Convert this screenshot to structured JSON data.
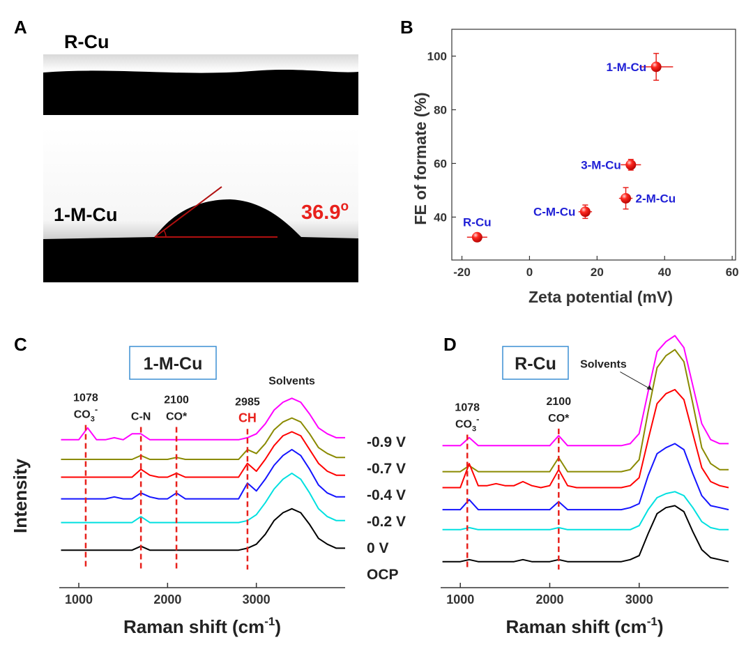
{
  "panel_letters": [
    "A",
    "B",
    "C",
    "D"
  ],
  "panel_a": {
    "top_label": "R-Cu",
    "bottom_label": "1-M-Cu",
    "angle": 36.9,
    "angle_sup": "o"
  },
  "chart_data": [
    {
      "type": "scatter",
      "xlabel": "Zeta potential (mV)",
      "ylabel": "FE of formate (%)",
      "x": [
        37.5,
        30,
        28.5,
        16.5,
        -15.5
      ],
      "values": [
        96,
        59.5,
        47,
        42,
        32.5
      ],
      "xerr": [
        5,
        3,
        2,
        2,
        3
      ],
      "yerr": [
        5,
        2,
        4,
        2.5,
        1
      ],
      "point_labels": [
        "1-M-Cu",
        "3-M-Cu",
        "2-M-Cu",
        "C-M-Cu",
        "R-Cu"
      ],
      "label_side": [
        "left",
        "left",
        "right",
        "left",
        "top"
      ],
      "color": "#e8211c",
      "label_color": "#1f1fd6",
      "xlim": [
        -23,
        61
      ],
      "ylim": [
        24,
        110
      ],
      "xticks": [
        -20,
        0,
        20,
        40,
        60
      ],
      "yticks": [
        40,
        60,
        80,
        100
      ]
    },
    {
      "type": "line",
      "title": "1-M-Cu",
      "ylabel": "Intensity",
      "xlabel": {
        "text": "Raman shift (cm",
        "sup": "-1",
        "tail": ")"
      },
      "x": [
        800,
        900,
        1000,
        1100,
        1200,
        1300,
        1400,
        1500,
        1600,
        1700,
        1800,
        1900,
        2000,
        2100,
        2200,
        2300,
        2400,
        2500,
        2600,
        2700,
        2800,
        2900,
        3000,
        3100,
        3200,
        3300,
        3400,
        3500,
        3600,
        3700,
        3800,
        3900,
        4000
      ],
      "xlim": [
        780,
        4000
      ],
      "ylim": [
        0,
        100
      ],
      "xticks": [
        1000,
        2000,
        3000
      ],
      "series": [
        {
          "color": "#ff00ff",
          "values": [
            75,
            75,
            75,
            81,
            75,
            75,
            76,
            75,
            78,
            78,
            75,
            75,
            75,
            75,
            75,
            75,
            75,
            75,
            75,
            75,
            75,
            76,
            78,
            83,
            90,
            94,
            96,
            94,
            88,
            81,
            78,
            76,
            76
          ]
        },
        {
          "color": "#8a8a00",
          "values": [
            65,
            65,
            65,
            65,
            65,
            65,
            65,
            65,
            65,
            67,
            65,
            65,
            65,
            66,
            65,
            65,
            65,
            65,
            65,
            65,
            65,
            70,
            68,
            73,
            80,
            84,
            86,
            84,
            78,
            71,
            68,
            66,
            66
          ]
        },
        {
          "color": "#ff0000",
          "values": [
            56,
            56,
            56,
            56,
            56,
            56,
            56,
            56,
            56,
            60,
            57,
            56,
            56,
            58,
            56,
            56,
            56,
            56,
            56,
            56,
            56,
            63,
            59,
            65,
            72,
            77,
            79,
            77,
            70,
            63,
            59,
            57,
            57
          ]
        },
        {
          "color": "#1414ff",
          "values": [
            45,
            45,
            45,
            45,
            45,
            45,
            46,
            45,
            45,
            48,
            46,
            45,
            45,
            48,
            45,
            45,
            45,
            45,
            45,
            45,
            45,
            53,
            49,
            55,
            62,
            67,
            70,
            67,
            60,
            52,
            48,
            46,
            46
          ]
        },
        {
          "color": "#00e0e0",
          "values": [
            33,
            33,
            33,
            33,
            33,
            33,
            33,
            33,
            33,
            36,
            33,
            33,
            33,
            33,
            33,
            33,
            33,
            33,
            33,
            33,
            33,
            34,
            37,
            43,
            50,
            55,
            58,
            55,
            48,
            40,
            36,
            34,
            34
          ]
        },
        {
          "color": "#000000",
          "values": [
            19,
            19,
            19,
            19,
            19,
            19,
            19,
            19,
            19,
            21,
            19,
            19,
            19,
            19,
            19,
            19,
            19,
            19,
            19,
            19,
            19,
            20,
            22,
            27,
            34,
            38,
            40,
            38,
            32,
            25,
            22,
            20,
            20
          ]
        }
      ],
      "annotations": [
        {
          "x": 1078,
          "y": 86,
          "dashed": true,
          "lines": [
            {
              "text": "1078"
            },
            {
              "text": "CO",
              "sub": "3",
              "sup": "-"
            }
          ]
        },
        {
          "x": 1700,
          "y": 85,
          "dashed": true,
          "lines": [
            {
              "text": "C-N"
            }
          ]
        },
        {
          "x": 2100,
          "y": 85,
          "dashed": true,
          "lines": [
            {
              "text": "2100"
            },
            {
              "text": "CO*"
            }
          ]
        },
        {
          "x": 2900,
          "y": 84,
          "dashed": true,
          "lines": [
            {
              "text": "2985"
            },
            {
              "text": "CH",
              "color": "#e8211c"
            }
          ]
        },
        {
          "x": 3400,
          "y": 103,
          "dashed": false,
          "lines": [
            {
              "text": "Solvents"
            }
          ]
        }
      ]
    },
    {
      "type": "line",
      "title": "R-Cu",
      "xlabel": {
        "text": "Raman shift (cm",
        "sup": "-1",
        "tail": ")"
      },
      "x": [
        800,
        900,
        1000,
        1100,
        1200,
        1300,
        1400,
        1500,
        1600,
        1700,
        1800,
        1900,
        2000,
        2100,
        2200,
        2300,
        2400,
        2500,
        2600,
        2700,
        2800,
        2900,
        3000,
        3100,
        3200,
        3300,
        3400,
        3500,
        3600,
        3700,
        3800,
        3900,
        4000
      ],
      "xlim": [
        780,
        4000
      ],
      "ylim": [
        0,
        130
      ],
      "xticks": [
        1000,
        2000,
        3000
      ],
      "series": [
        {
          "name": "-0.9 V",
          "color": "#ff00ff",
          "values": [
            71,
            71,
            71,
            75,
            71,
            71,
            71,
            71,
            71,
            71,
            71,
            71,
            71,
            76,
            71,
            71,
            71,
            71,
            71,
            71,
            71,
            72,
            77,
            98,
            118,
            123,
            126,
            120,
            101,
            82,
            74,
            72,
            72
          ]
        },
        {
          "name": "-0.7 V",
          "color": "#8a8a00",
          "values": [
            58,
            58,
            58,
            61,
            58,
            58,
            58,
            58,
            58,
            58,
            58,
            58,
            58,
            65,
            58,
            58,
            58,
            58,
            58,
            58,
            58,
            59,
            64,
            88,
            110,
            116,
            119,
            113,
            92,
            70,
            62,
            59,
            59
          ]
        },
        {
          "name": "-0.4 V",
          "color": "#ff0000",
          "values": [
            50,
            50,
            50,
            62,
            51,
            51,
            52,
            51,
            51,
            53,
            51,
            50,
            51,
            59,
            51,
            50,
            50,
            50,
            50,
            50,
            50,
            51,
            55,
            74,
            92,
            97,
            99,
            94,
            77,
            60,
            53,
            51,
            50
          ]
        },
        {
          "name": "-0.2 V",
          "color": "#1414ff",
          "values": [
            39,
            39,
            39,
            44,
            39,
            39,
            39,
            39,
            39,
            39,
            39,
            39,
            39,
            43,
            39,
            39,
            39,
            39,
            39,
            39,
            39,
            40,
            42,
            56,
            67,
            70,
            72,
            69,
            57,
            46,
            41,
            40,
            39
          ]
        },
        {
          "name": "0 V",
          "color": "#00e0e0",
          "values": [
            29,
            29,
            29,
            30,
            29,
            29,
            29,
            29,
            29,
            29,
            29,
            29,
            29,
            30,
            29,
            29,
            29,
            29,
            29,
            29,
            29,
            29,
            31,
            39,
            45,
            47,
            48,
            46,
            40,
            33,
            30,
            29,
            29
          ]
        },
        {
          "name": "OCP",
          "color": "#000000",
          "values": [
            13,
            13,
            13,
            14,
            13,
            13,
            13,
            13,
            13,
            14,
            13,
            13,
            13,
            14,
            13,
            13,
            13,
            13,
            13,
            13,
            13,
            14,
            16,
            27,
            37,
            40,
            41,
            38,
            28,
            19,
            15,
            14,
            13
          ]
        }
      ],
      "annotations": [
        {
          "x": 1078,
          "y": 80,
          "dashed": true,
          "lines": [
            {
              "text": "1078"
            },
            {
              "text": "CO",
              "sub": "3",
              "sup": "-"
            }
          ]
        },
        {
          "x": 2100,
          "y": 83,
          "dashed": true,
          "lines": [
            {
              "text": "2100"
            },
            {
              "text": "CO*"
            }
          ]
        },
        {
          "x": 2600,
          "y": 110,
          "dashed": false,
          "arrow": true,
          "lines": [
            {
              "text": "Solvents"
            }
          ]
        }
      ]
    }
  ]
}
